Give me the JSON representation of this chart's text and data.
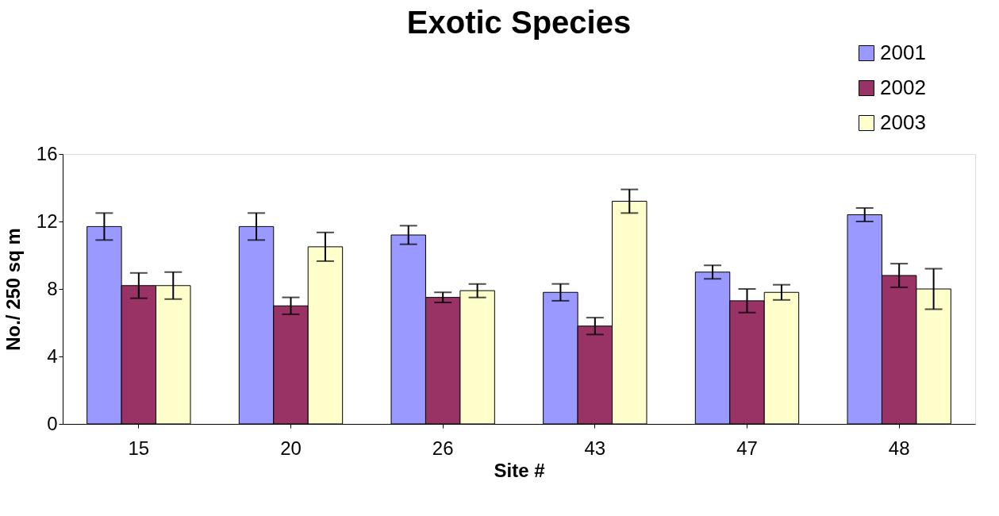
{
  "chart_data": {
    "type": "bar",
    "title": "Exotic Species",
    "xlabel": "Site #",
    "ylabel": "No./ 250 sq m",
    "categories": [
      "15",
      "20",
      "26",
      "43",
      "47",
      "48"
    ],
    "series": [
      {
        "name": "2001",
        "color": "#9999ff",
        "values": [
          11.7,
          11.7,
          11.2,
          7.8,
          9.0,
          12.4
        ],
        "errors": [
          0.8,
          0.8,
          0.55,
          0.5,
          0.4,
          0.4
        ]
      },
      {
        "name": "2002",
        "color": "#993366",
        "values": [
          8.2,
          7.0,
          7.5,
          5.8,
          7.3,
          8.8
        ],
        "errors": [
          0.75,
          0.5,
          0.3,
          0.5,
          0.7,
          0.7
        ]
      },
      {
        "name": "2003",
        "color": "#ffffcc",
        "values": [
          8.2,
          10.5,
          7.9,
          13.2,
          7.8,
          8.0
        ],
        "errors": [
          0.8,
          0.85,
          0.4,
          0.7,
          0.45,
          1.2
        ]
      }
    ],
    "ylim": [
      0,
      16
    ],
    "yticks": [
      0,
      4,
      8,
      12,
      16
    ],
    "grid": false,
    "legend": "top right"
  }
}
